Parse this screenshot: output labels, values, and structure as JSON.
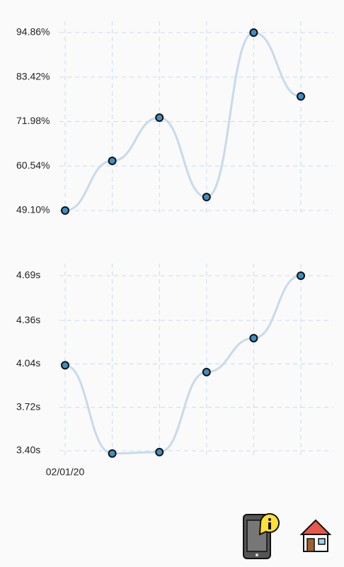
{
  "chart_data": [
    {
      "type": "line",
      "values": [
        49.1,
        61.86,
        72.98,
        52.56,
        94.86,
        78.45
      ],
      "color": "#c7daec",
      "marker_color": "#3d8fc6",
      "ylim": [
        49.1,
        94.86
      ],
      "yticks": [
        {
          "value": 49.1,
          "label": "49.10%"
        },
        {
          "value": 60.54,
          "label": "60.54%"
        },
        {
          "value": 71.98,
          "label": "71.98%"
        },
        {
          "value": 83.42,
          "label": "83.42%"
        },
        {
          "value": 94.86,
          "label": "94.86%"
        }
      ],
      "grid": true
    },
    {
      "type": "line",
      "categories": [
        "02/01/20",
        null,
        null,
        null,
        null,
        null
      ],
      "values": [
        4.03,
        3.38,
        3.39,
        3.98,
        4.23,
        4.69
      ],
      "color": "#c7daec",
      "marker_color": "#3d8fc6",
      "ylim": [
        3.4,
        4.69
      ],
      "yticks": [
        {
          "value": 3.4,
          "label": "3.40s"
        },
        {
          "value": 3.72,
          "label": "3.72s"
        },
        {
          "value": 4.04,
          "label": "4.04s"
        },
        {
          "value": 4.36,
          "label": "4.36s"
        },
        {
          "value": 4.69,
          "label": "4.69s"
        }
      ],
      "grid": true
    }
  ]
}
